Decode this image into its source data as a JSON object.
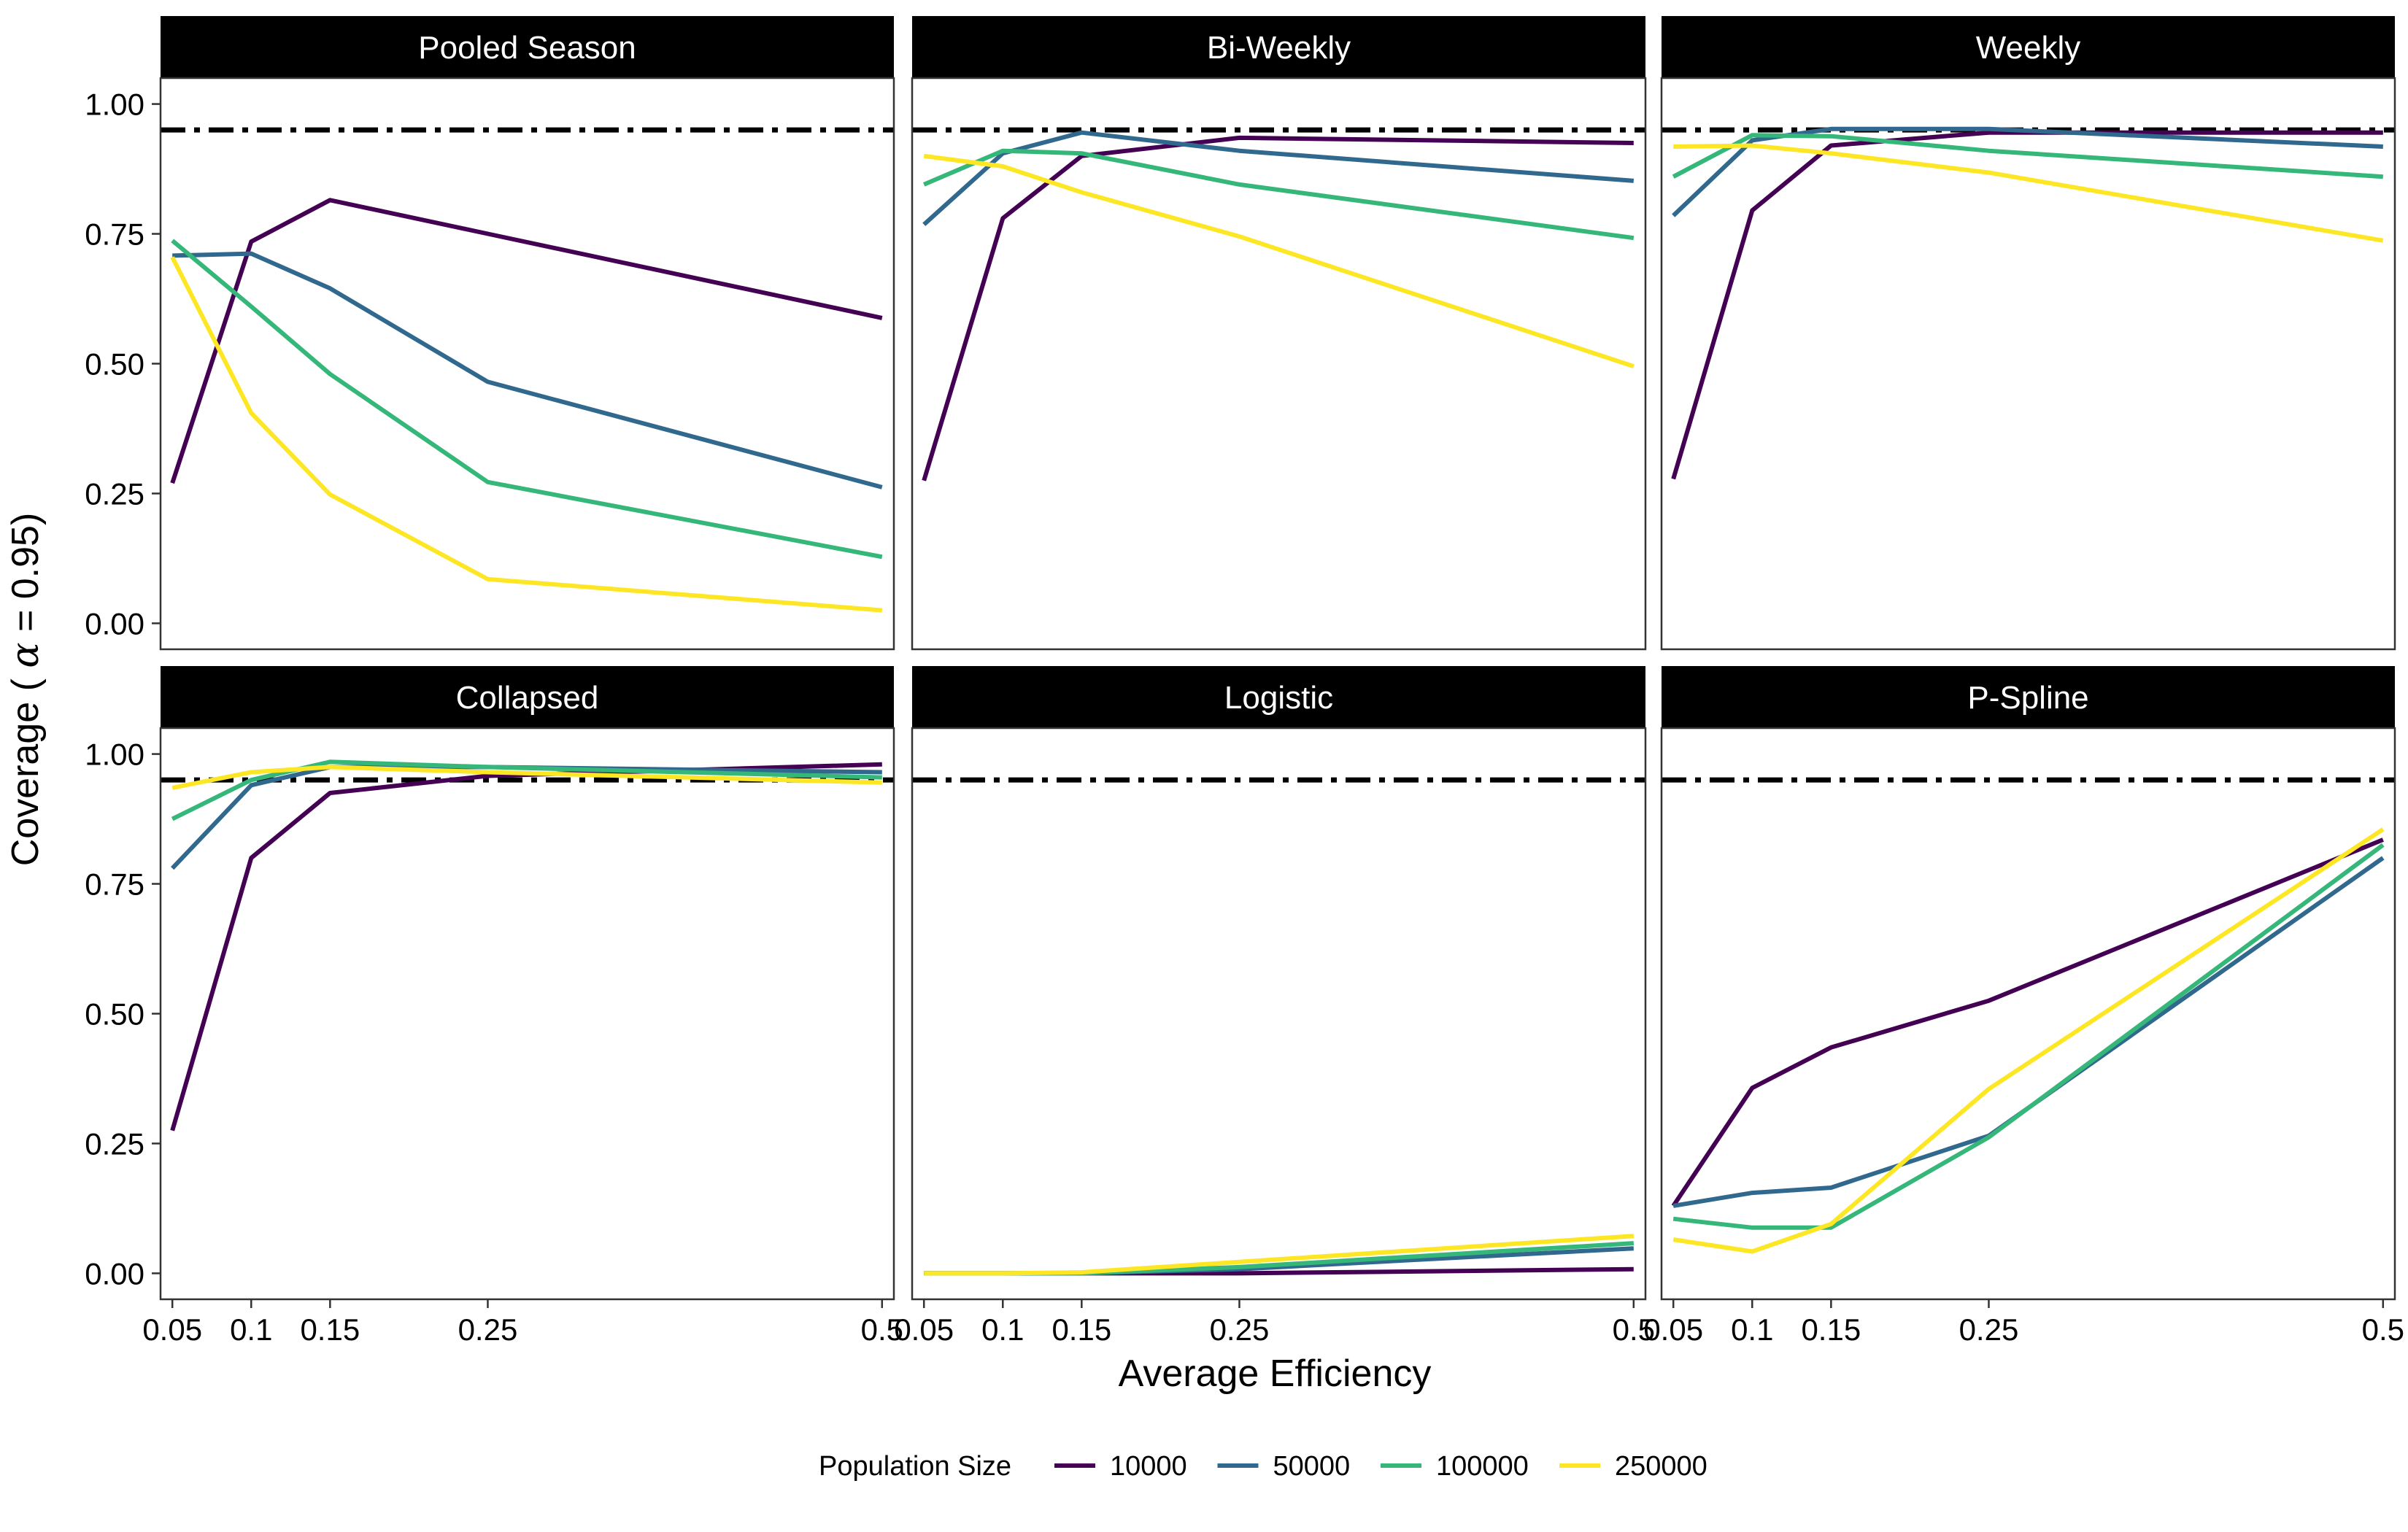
{
  "chart_data": {
    "type": "line",
    "layout": "facet-grid-2x3",
    "xlabel": "Average Efficiency",
    "ylabel": "Coverage ( α = 0.95)",
    "ylabel_prefix": "Coverage ( ",
    "ylabel_symbol": "α",
    "ylabel_suffix": " = 0.95)",
    "x": [
      0.05,
      0.1,
      0.15,
      0.25,
      0.5
    ],
    "x_tick_labels": [
      "0.05",
      "0.1",
      "0.15",
      "0.25",
      "0.5"
    ],
    "xlim": [
      0.0425,
      0.5075
    ],
    "ylim": [
      -0.05,
      1.05
    ],
    "y_ticks": [
      0,
      0.25,
      0.5,
      0.75,
      1.0
    ],
    "y_tick_labels": [
      "0.00",
      "0.25",
      "0.50",
      "0.75",
      "1.00"
    ],
    "reference_line": {
      "y": 0.95,
      "style": "dot-dash",
      "color": "#000000"
    },
    "grid": false,
    "legend": {
      "title": "Population Size",
      "placement": "bottom",
      "entries": [
        {
          "name": "10000",
          "color": "#440154"
        },
        {
          "name": "50000",
          "color": "#31688E"
        },
        {
          "name": "100000",
          "color": "#35B779"
        },
        {
          "name": "250000",
          "color": "#FDE725"
        }
      ]
    },
    "panels": [
      {
        "title": "Pooled Season",
        "series": [
          {
            "name": "10000",
            "values": [
              0.27,
              0.735,
              0.815,
              0.75,
              0.588
            ]
          },
          {
            "name": "50000",
            "values": [
              0.708,
              0.712,
              0.645,
              0.465,
              0.262
            ]
          },
          {
            "name": "100000",
            "values": [
              0.737,
              0.61,
              0.48,
              0.272,
              0.128
            ]
          },
          {
            "name": "250000",
            "values": [
              0.705,
              0.405,
              0.248,
              0.085,
              0.025
            ]
          }
        ]
      },
      {
        "title": "Bi-Weekly",
        "series": [
          {
            "name": "10000",
            "values": [
              0.275,
              0.78,
              0.9,
              0.935,
              0.925
            ]
          },
          {
            "name": "50000",
            "values": [
              0.768,
              0.905,
              0.945,
              0.91,
              0.852
            ]
          },
          {
            "name": "100000",
            "values": [
              0.845,
              0.91,
              0.905,
              0.845,
              0.742
            ]
          },
          {
            "name": "250000",
            "values": [
              0.9,
              0.88,
              0.83,
              0.745,
              0.495
            ]
          }
        ]
      },
      {
        "title": "Weekly",
        "series": [
          {
            "name": "10000",
            "values": [
              0.278,
              0.795,
              0.92,
              0.945,
              0.945
            ]
          },
          {
            "name": "50000",
            "values": [
              0.785,
              0.93,
              0.952,
              0.952,
              0.918
            ]
          },
          {
            "name": "100000",
            "values": [
              0.86,
              0.94,
              0.938,
              0.91,
              0.86
            ]
          },
          {
            "name": "250000",
            "values": [
              0.918,
              0.92,
              0.905,
              0.868,
              0.737
            ]
          }
        ]
      },
      {
        "title": "Collapsed",
        "series": [
          {
            "name": "10000",
            "values": [
              0.275,
              0.8,
              0.925,
              0.958,
              0.98
            ]
          },
          {
            "name": "50000",
            "values": [
              0.78,
              0.94,
              0.975,
              0.975,
              0.965
            ]
          },
          {
            "name": "100000",
            "values": [
              0.875,
              0.95,
              0.985,
              0.975,
              0.955
            ]
          },
          {
            "name": "250000",
            "values": [
              0.935,
              0.965,
              0.975,
              0.965,
              0.945
            ]
          }
        ]
      },
      {
        "title": "Logistic",
        "series": [
          {
            "name": "10000",
            "values": [
              0.0,
              0.0,
              0.0,
              0.0,
              0.008
            ]
          },
          {
            "name": "50000",
            "values": [
              0.0,
              0.0,
              0.0,
              0.008,
              0.048
            ]
          },
          {
            "name": "100000",
            "values": [
              0.0,
              0.0,
              0.0,
              0.012,
              0.058
            ]
          },
          {
            "name": "250000",
            "values": [
              0.0,
              0.0,
              0.002,
              0.022,
              0.072
            ]
          }
        ]
      },
      {
        "title": "P-Spline",
        "series": [
          {
            "name": "10000",
            "values": [
              0.13,
              0.357,
              0.435,
              0.525,
              0.835
            ]
          },
          {
            "name": "50000",
            "values": [
              0.13,
              0.155,
              0.165,
              0.265,
              0.8
            ]
          },
          {
            "name": "100000",
            "values": [
              0.105,
              0.088,
              0.088,
              0.262,
              0.825
            ]
          },
          {
            "name": "250000",
            "values": [
              0.065,
              0.042,
              0.095,
              0.355,
              0.855
            ]
          }
        ]
      }
    ]
  }
}
